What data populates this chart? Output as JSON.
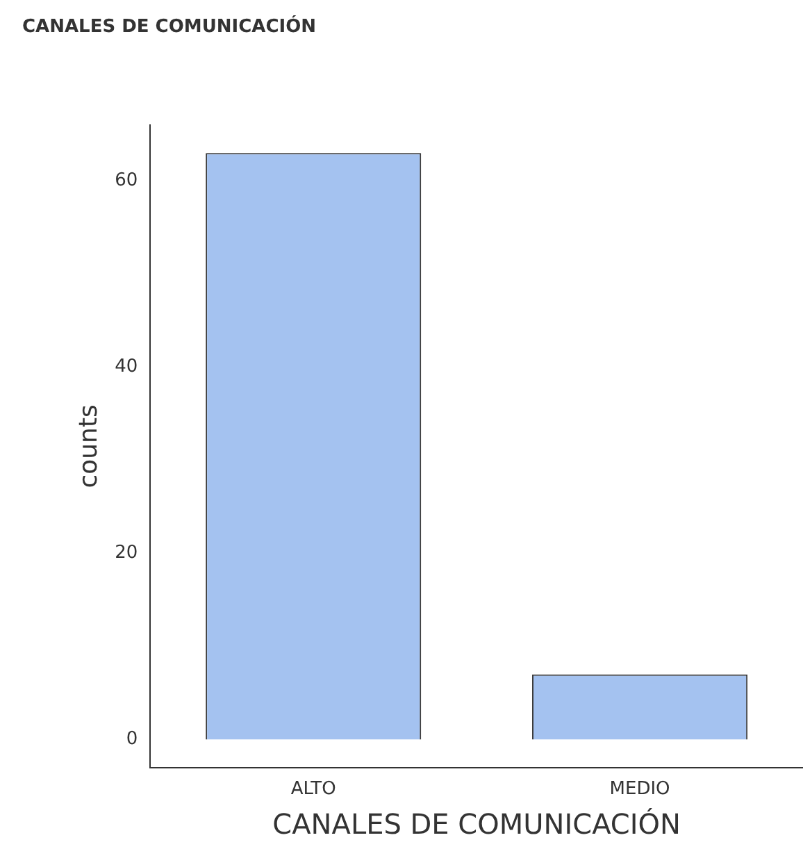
{
  "chart_data": {
    "type": "bar",
    "title": "CANALES DE COMUNICACIÓN",
    "xlabel": "CANALES DE COMUNICACIÓN",
    "ylabel": "counts",
    "categories": [
      "ALTO",
      "MEDIO"
    ],
    "values": [
      63,
      7
    ],
    "color": "#a4c2f0",
    "ylim": [
      -3,
      66
    ],
    "yticks": [
      0,
      20,
      40,
      60
    ],
    "grid": false,
    "legend": false
  }
}
